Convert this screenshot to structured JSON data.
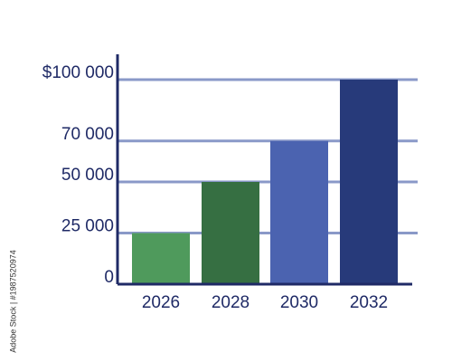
{
  "chart_data": {
    "type": "bar",
    "categories": [
      "2026",
      "2028",
      "2030",
      "2032"
    ],
    "values": [
      25000,
      50000,
      70000,
      100000
    ],
    "y_ticks": [
      {
        "value": 0,
        "label": "0"
      },
      {
        "value": 25000,
        "label": "25 000"
      },
      {
        "value": 50000,
        "label": "50 000"
      },
      {
        "value": 70000,
        "label": "70 000"
      },
      {
        "value": 100000,
        "label": "$100 000"
      }
    ],
    "ylim": [
      0,
      100000
    ],
    "grid": true,
    "title": "",
    "xlabel": "",
    "ylabel": "",
    "colors": {
      "bars": [
        "#4f9a5c",
        "#366f42",
        "#4b63b0",
        "#273a7a"
      ],
      "axis": "#1f2a66",
      "grid": "#8a99c8",
      "text": "#1f2a66"
    }
  },
  "watermark": {
    "side_text": "Adobe Stock | #1987520974"
  }
}
